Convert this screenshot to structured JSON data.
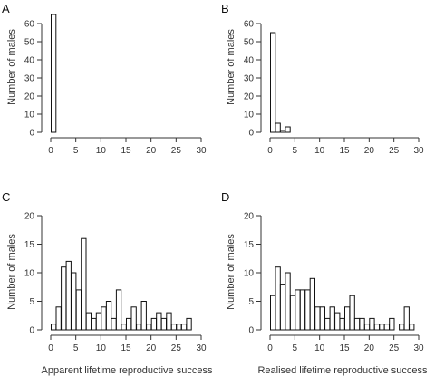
{
  "chart_data": [
    {
      "type": "bar",
      "panel_label": "A",
      "ylabel": "Number of males",
      "xlabel": "",
      "xlim": [
        0,
        30
      ],
      "ylim": [
        0,
        60
      ],
      "xticks": [
        0,
        5,
        10,
        15,
        20,
        25,
        30
      ],
      "yticks": [
        0,
        10,
        20,
        30,
        40,
        50,
        60
      ],
      "x": [
        0
      ],
      "values": [
        65
      ]
    },
    {
      "type": "bar",
      "panel_label": "B",
      "ylabel": "Number of males",
      "xlabel": "",
      "xlim": [
        0,
        30
      ],
      "ylim": [
        0,
        60
      ],
      "xticks": [
        0,
        5,
        10,
        15,
        20,
        25,
        30
      ],
      "yticks": [
        0,
        10,
        20,
        30,
        40,
        50,
        60
      ],
      "x": [
        0,
        1,
        2,
        3
      ],
      "values": [
        55,
        5,
        1,
        3
      ]
    },
    {
      "type": "bar",
      "panel_label": "C",
      "ylabel": "Number of males",
      "xlabel": "Apparent lifetime reproductive success",
      "xlim": [
        0,
        30
      ],
      "ylim": [
        0,
        20
      ],
      "xticks": [
        0,
        5,
        10,
        15,
        20,
        25,
        30
      ],
      "yticks": [
        0,
        5,
        10,
        15,
        20
      ],
      "x": [
        0,
        1,
        2,
        3,
        4,
        5,
        6,
        7,
        8,
        9,
        10,
        11,
        12,
        13,
        14,
        15,
        16,
        17,
        18,
        19,
        20,
        21,
        22,
        23,
        24,
        25,
        26,
        27,
        28
      ],
      "values": [
        1,
        4,
        11,
        12,
        10,
        7,
        16,
        3,
        2,
        3,
        4,
        5,
        2,
        7,
        1,
        2,
        4,
        1,
        5,
        1,
        2,
        3,
        2,
        3,
        1,
        1,
        1,
        2,
        0
      ]
    },
    {
      "type": "bar",
      "panel_label": "D",
      "ylabel": "Number of males",
      "xlabel": "Realised lifetime reproductive success",
      "xlim": [
        0,
        30
      ],
      "ylim": [
        0,
        20
      ],
      "xticks": [
        0,
        5,
        10,
        15,
        20,
        25,
        30
      ],
      "yticks": [
        0,
        5,
        10,
        15,
        20
      ],
      "x": [
        0,
        1,
        2,
        3,
        4,
        5,
        6,
        7,
        8,
        9,
        10,
        11,
        12,
        13,
        14,
        15,
        16,
        17,
        18,
        19,
        20,
        21,
        22,
        23,
        24,
        25,
        26,
        27,
        28,
        29
      ],
      "values": [
        6,
        11,
        8,
        10,
        6,
        7,
        7,
        7,
        9,
        4,
        4,
        2,
        4,
        3,
        2,
        4,
        6,
        2,
        2,
        1,
        2,
        1,
        1,
        1,
        2,
        0,
        1,
        4,
        1,
        0
      ]
    }
  ]
}
